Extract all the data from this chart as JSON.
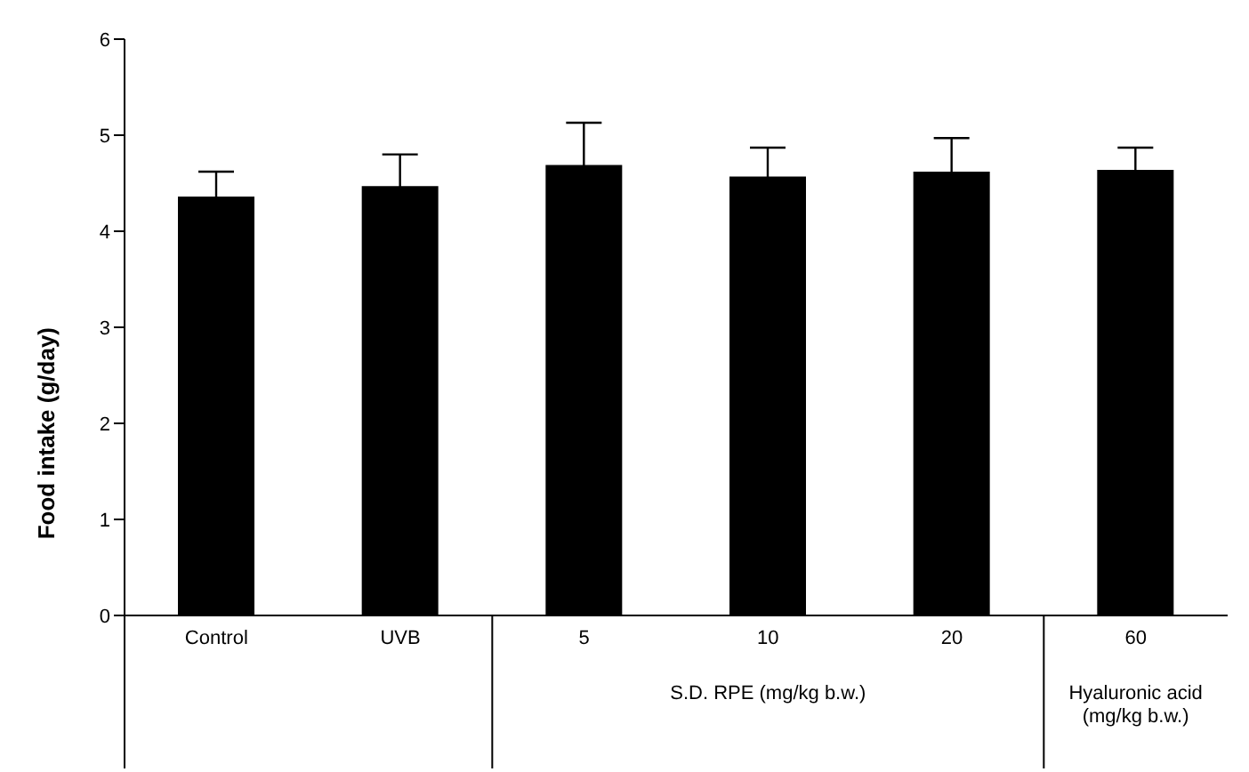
{
  "chart_data": {
    "type": "bar",
    "ylabel": "Food intake (g/day)",
    "categories": [
      "Control",
      "UVB",
      "5",
      "10",
      "20",
      "60"
    ],
    "values": [
      4.36,
      4.47,
      4.69,
      4.57,
      4.62,
      4.64
    ],
    "errors": [
      0.26,
      0.33,
      0.44,
      0.3,
      0.35,
      0.23
    ],
    "color": "#000000",
    "ylim": [
      0,
      6
    ],
    "yticks": [
      0,
      1,
      2,
      3,
      4,
      5,
      6
    ],
    "grid": false,
    "legend": false,
    "annotations": [
      "S.D. RPE (mg/kg b.w.)",
      "Hyaluronic acid (mg/kg b.w.)"
    ]
  }
}
